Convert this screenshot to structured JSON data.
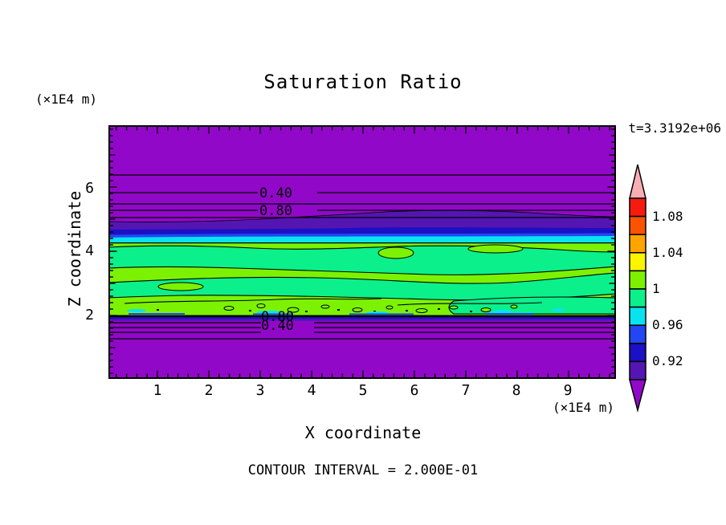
{
  "title": "Saturation Ratio",
  "time_label": "t=3.3192e+06",
  "contour_note": "CONTOUR INTERVAL = 2.000E-01",
  "axes": {
    "x_label": "X coordinate",
    "z_label": "Z coordinate",
    "x_unit": "(×1E4 m)",
    "z_unit": "(×1E4 m)",
    "x_ticks": [
      "1",
      "2",
      "3",
      "4",
      "5",
      "6",
      "7",
      "8",
      "9"
    ],
    "z_ticks": [
      "6",
      "4",
      "2"
    ]
  },
  "contour_labels": {
    "upper_040": "0.40",
    "upper_080": "0.80",
    "lower_080": "0.80",
    "lower_040": "0.40"
  },
  "colorbar": {
    "labels": [
      "1.08",
      "1.04",
      "1",
      "0.96",
      "0.92"
    ],
    "segment_colors": [
      "#f71b0f",
      "#fb5300",
      "#ffa400",
      "#fdf500",
      "#7cf202",
      "#0bf08b",
      "#09e3f0",
      "#2247f2",
      "#1c10c4",
      "#5515b2"
    ],
    "above_color": "#f9aeb3",
    "below_color": "#9208c9"
  },
  "colors": {
    "purple": "#9208c9",
    "indigo": "#5515b2",
    "navy": "#1c10c4",
    "blue": "#2247f2",
    "cyan": "#09e3f0",
    "springgreen": "#0bf08b",
    "chartreuse": "#7cf202",
    "contour": "#000000"
  },
  "chart_data": {
    "type": "heatmap",
    "title": "Saturation Ratio",
    "xlabel": "X coordinate (×1E4 m)",
    "ylabel": "Z coordinate (×1E4 m)",
    "x_range": [
      0,
      9.9
    ],
    "z_range": [
      0,
      7.9
    ],
    "x_tick_values": [
      1,
      2,
      3,
      4,
      5,
      6,
      7,
      8,
      9
    ],
    "z_tick_values": [
      2,
      4,
      6
    ],
    "time_seconds": 3319200,
    "fill_contour_interval": 0.02,
    "fill_level_range": [
      0.9,
      1.1
    ],
    "colorbar_tick_labels": [
      1.08,
      1.04,
      1,
      0.96,
      0.92
    ],
    "colorbar_has_over_under_arrows": true,
    "line_contour_interval": 0.2,
    "labeled_line_contours_upper": [
      {
        "value": 0.4,
        "z": 5.8
      },
      {
        "value": 0.8,
        "z": 5.3
      }
    ],
    "labeled_line_contours_lower": [
      {
        "value": 0.8,
        "z": 1.95
      },
      {
        "value": 0.4,
        "z": 1.7
      }
    ],
    "bands": [
      {
        "z_range": [
          5.0,
          7.9
        ],
        "saturation": "<0.90",
        "color_name": "purple"
      },
      {
        "z_range": [
          4.6,
          5.0
        ],
        "saturation": "0.90-0.94",
        "color_name": "indigo-navy"
      },
      {
        "z_range": [
          4.25,
          4.65
        ],
        "saturation": "0.94-0.98",
        "color_name": "blue-cyan"
      },
      {
        "z_range": [
          2.0,
          4.25
        ],
        "saturation": "0.98-1.02",
        "color_name": "springgreen-chartreuse mottled"
      },
      {
        "z_range": [
          1.9,
          2.0
        ],
        "saturation": "0.90-0.98",
        "color_name": "blue-navy-indigo thin strip"
      },
      {
        "z_range": [
          0,
          1.9
        ],
        "saturation": "<0.90",
        "color_name": "purple"
      }
    ],
    "legend_position": "right vertical colorbar",
    "grid": false
  }
}
